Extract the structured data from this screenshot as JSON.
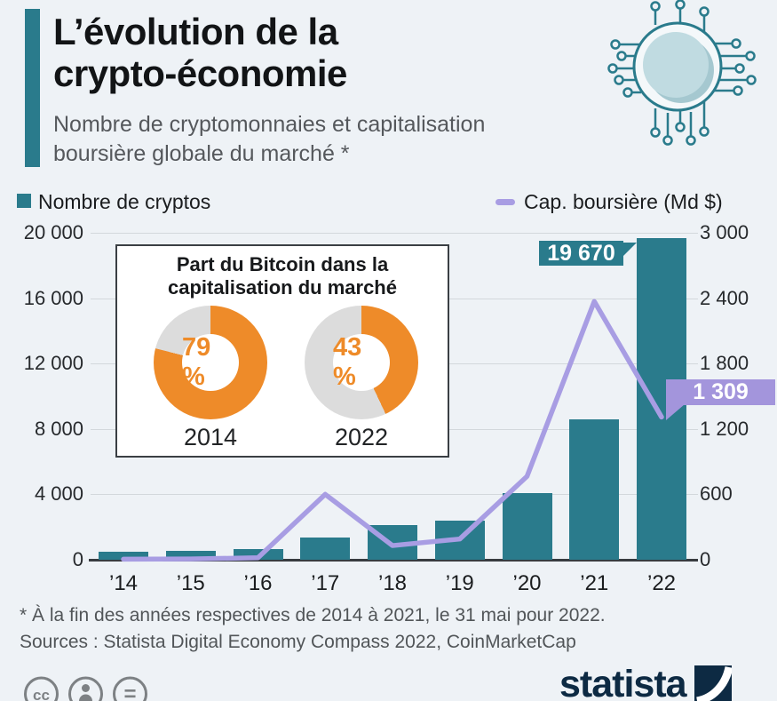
{
  "page": {
    "background": "#eef2f6"
  },
  "header": {
    "title_lines": [
      "L’évolution de la",
      "crypto-économie"
    ],
    "subtitle_lines": [
      "Nombre de cryptomonnaies et capitalisation",
      "boursière globale du marché *"
    ],
    "accent_color": "#2a7b8c"
  },
  "legend": {
    "bar_label": "Nombre de cryptos",
    "line_label": "Cap. boursière (Md $)",
    "bar_color": "#2a7b8c",
    "line_color": "#a89de3"
  },
  "chart_data": {
    "type": "bar",
    "title": "Nombre de cryptomonnaies et capitalisation boursière globale du marché",
    "categories": [
      "’14",
      "’15",
      "’16",
      "’17",
      "’18",
      "’19",
      "’20",
      "’21",
      "’22"
    ],
    "series": [
      {
        "name": "Nombre de cryptos",
        "type": "bar",
        "axis": "left",
        "color": "#2a7b8c",
        "values": [
          500,
          560,
          650,
          1350,
          2100,
          2400,
          4100,
          8600,
          19670
        ]
      },
      {
        "name": "Cap. boursière (Md $)",
        "type": "line",
        "axis": "right",
        "color": "#a89de3",
        "values": [
          5,
          7,
          18,
          600,
          130,
          190,
          765,
          2370,
          1309
        ]
      }
    ],
    "left_axis": {
      "label": "Nombre de cryptos",
      "max": 20000,
      "ticks": [
        0,
        4000,
        8000,
        12000,
        16000,
        20000
      ],
      "tick_labels": [
        "0",
        "4 000",
        "8 000",
        "12 000",
        "16 000",
        "20 000"
      ]
    },
    "right_axis": {
      "label": "Cap. boursière (Md $)",
      "max": 3000,
      "ticks": [
        0,
        600,
        1200,
        1800,
        2400,
        3000
      ],
      "tick_labels": [
        "0",
        "600",
        "1 200",
        "1 800",
        "2 400",
        "3 000"
      ]
    },
    "annotations": [
      {
        "series": "Nombre de cryptos",
        "category": "’22",
        "text": "19 670",
        "bg": "#2a7b8c",
        "text_color": "#ffffff"
      },
      {
        "series": "Cap. boursière (Md $)",
        "category": "’22",
        "text": "1 309",
        "bg": "#a395dc",
        "text_color": "#ffffff"
      }
    ],
    "grid": true,
    "legend_position": "top"
  },
  "inset": {
    "title_lines": [
      "Part du Bitcoin dans la",
      "capitalisation du marché"
    ],
    "donut_color": "#ee8b29",
    "donut_rest_color": "#dcdcdc",
    "donuts": [
      {
        "year": "2014",
        "pct": 79,
        "label": "79 %"
      },
      {
        "year": "2022",
        "pct": 43,
        "label": "43 %"
      }
    ]
  },
  "footer": {
    "note": "* À la fin des années respectives de 2014 à 2021, le 31 mai pour 2022.",
    "sources": "Sources : Statista Digital Economy Compass 2022, CoinMarketCap",
    "brand": "statista",
    "cc_glyph": "cc",
    "nd_glyph": "="
  }
}
